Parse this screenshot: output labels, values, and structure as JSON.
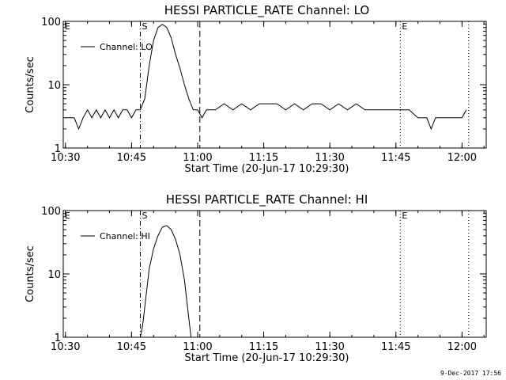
{
  "footer": {
    "timestamp": "9-Dec-2017 17:56"
  },
  "chart_data": [
    {
      "type": "line",
      "title": "HESSI PARTICLE_RATE Channel: LO",
      "xlabel": "Start Time (20-Jun-17 10:29:30)",
      "ylabel": "Counts/sec",
      "yscale": "log",
      "xlim": [
        "10:29:30",
        "12:05:30"
      ],
      "ylim": [
        1,
        100
      ],
      "xticks": [
        "10:30",
        "10:45",
        "11:00",
        "11:15",
        "11:30",
        "11:45",
        "12:00"
      ],
      "yticks": [
        "1",
        "10",
        "100"
      ],
      "legend": {
        "label": "Channel: LO",
        "position": "top-left"
      },
      "markers": [
        {
          "label": "E",
          "time": "10:29:30",
          "style": "dotted"
        },
        {
          "label": "S",
          "time": "10:47:00",
          "style": "dash-dot"
        },
        {
          "label": "",
          "time": "11:00:30",
          "style": "dashed"
        },
        {
          "label": "E",
          "time": "11:46:00",
          "style": "dotted"
        },
        {
          "label": "",
          "time": "12:01:30",
          "style": "dotted"
        }
      ],
      "series": [
        {
          "x": [
            "10:30:00",
            "10:31:00",
            "10:32:00",
            "10:33:00",
            "10:34:00",
            "10:35:00",
            "10:36:00",
            "10:37:00",
            "10:38:00",
            "10:39:00",
            "10:40:00",
            "10:41:00",
            "10:42:00",
            "10:43:00",
            "10:44:00",
            "10:45:00",
            "10:46:00",
            "10:47:00",
            "10:48:00",
            "10:49:00",
            "10:50:00",
            "10:51:00",
            "10:52:00",
            "10:53:00",
            "10:54:00",
            "10:55:00",
            "10:56:00",
            "10:57:00",
            "10:58:00",
            "10:59:00",
            "11:00:00",
            "11:01:00",
            "11:02:00",
            "11:04:00",
            "11:06:00",
            "11:08:00",
            "11:10:00",
            "11:12:00",
            "11:14:00",
            "11:16:00",
            "11:18:00",
            "11:20:00",
            "11:22:00",
            "11:24:00",
            "11:26:00",
            "11:28:00",
            "11:30:00",
            "11:32:00",
            "11:34:00",
            "11:36:00",
            "11:38:00",
            "11:40:00",
            "11:42:00",
            "11:44:00",
            "11:46:00",
            "11:48:00",
            "11:50:00",
            "11:52:00",
            "11:53:00",
            "11:54:00",
            "11:56:00",
            "11:58:00",
            "12:00:00",
            "12:01:00"
          ],
          "values": [
            3,
            3,
            3,
            2,
            3,
            4,
            3,
            4,
            3,
            4,
            3,
            4,
            3,
            4,
            4,
            3,
            4,
            4,
            6,
            20,
            50,
            80,
            90,
            80,
            55,
            30,
            18,
            10,
            6,
            4,
            4,
            3,
            4,
            4,
            5,
            4,
            5,
            4,
            5,
            5,
            5,
            4,
            5,
            4,
            5,
            5,
            4,
            5,
            4,
            5,
            4,
            4,
            4,
            4,
            4,
            4,
            3,
            3,
            2,
            3,
            3,
            3,
            3,
            4
          ]
        }
      ]
    },
    {
      "type": "line",
      "title": "HESSI PARTICLE_RATE Channel: HI",
      "xlabel": "Start Time (20-Jun-17 10:29:30)",
      "ylabel": "Counts/sec",
      "yscale": "log",
      "xlim": [
        "10:29:30",
        "12:05:30"
      ],
      "ylim": [
        1,
        100
      ],
      "xticks": [
        "10:30",
        "10:45",
        "11:00",
        "11:15",
        "11:30",
        "11:45",
        "12:00"
      ],
      "yticks": [
        "1",
        "10",
        "100"
      ],
      "legend": {
        "label": "Channel: HI",
        "position": "top-left"
      },
      "markers": [
        {
          "label": "E",
          "time": "10:29:30",
          "style": "dotted"
        },
        {
          "label": "S",
          "time": "10:47:00",
          "style": "dash-dot"
        },
        {
          "label": "",
          "time": "11:00:30",
          "style": "dashed"
        },
        {
          "label": "E",
          "time": "11:46:00",
          "style": "dotted"
        },
        {
          "label": "",
          "time": "12:01:30",
          "style": "dotted"
        }
      ],
      "series": [
        {
          "x": [
            "10:47:00",
            "10:47:30",
            "10:48:00",
            "10:48:30",
            "10:49:00",
            "10:50:00",
            "10:51:00",
            "10:52:00",
            "10:53:00",
            "10:54:00",
            "10:55:00",
            "10:56:00",
            "10:57:00",
            "10:57:30",
            "10:58:00",
            "10:58:30"
          ],
          "values": [
            1,
            1.5,
            3,
            6,
            12,
            25,
            40,
            55,
            58,
            50,
            35,
            20,
            8,
            4,
            2,
            1
          ]
        }
      ]
    }
  ]
}
